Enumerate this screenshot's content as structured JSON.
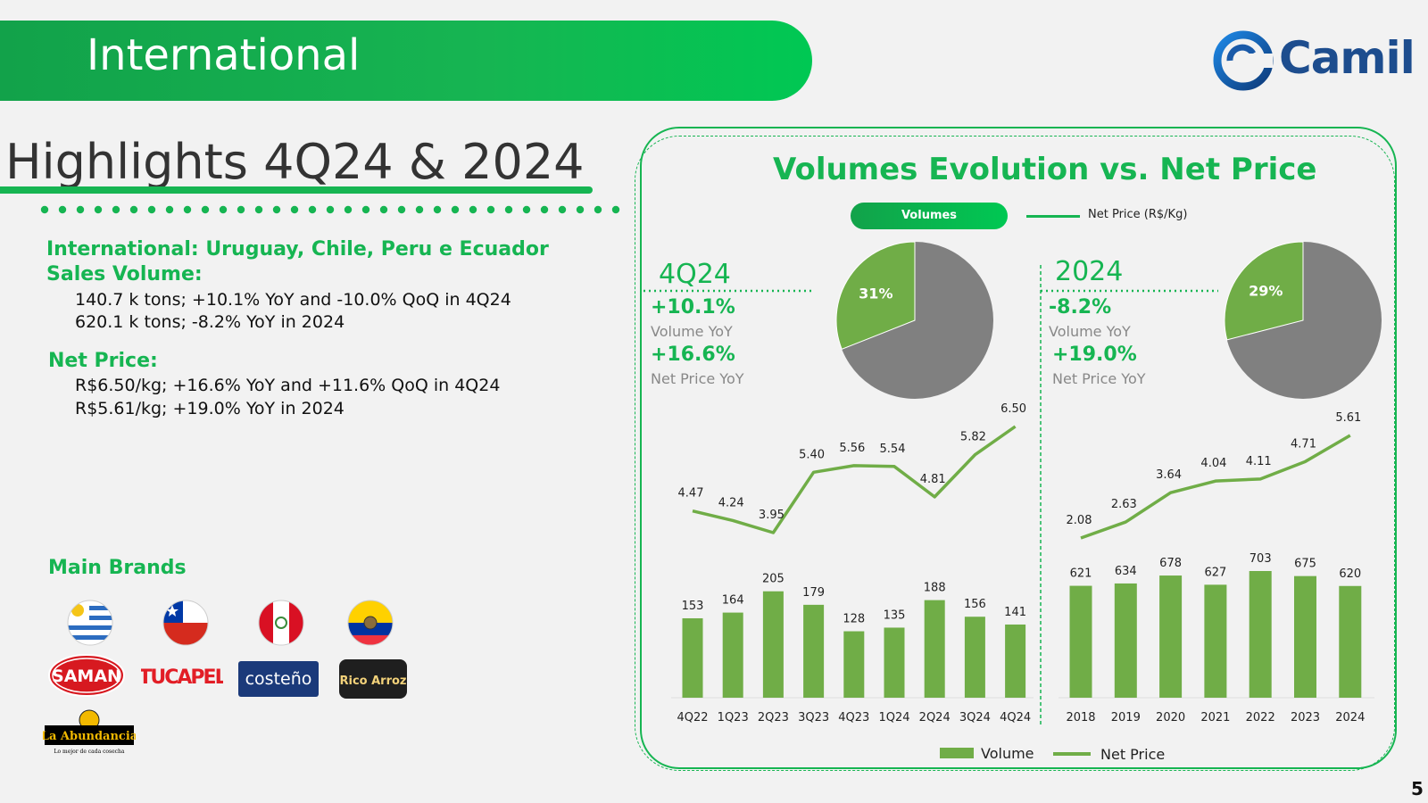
{
  "header": {
    "title": "International"
  },
  "logo": {
    "text": "Camil",
    "color": "#1d4d8e"
  },
  "highlights": {
    "title": "Highlights 4Q24 & 2024",
    "sales_heading_1": "International: Uruguay, Chile, Peru e Ecuador",
    "sales_heading_2": "Sales Volume:",
    "sales_lines": [
      "140.7 k tons; +10.1% YoY and -10.0% QoQ in 4Q24",
      "620.1 k tons; -8.2% YoY in 2024"
    ],
    "price_heading": "Net Price:",
    "price_lines": [
      "R$6.50/kg; +16.6% YoY and +11.6% QoQ in 4Q24",
      "R$5.61/kg; +19.0% YoY in 2024"
    ],
    "brands_heading": "Main Brands",
    "brands": [
      "SAMAN",
      "TUCAPEL",
      "costeño",
      "Rico Arroz",
      "La Abundancia"
    ],
    "brand_tagline": "Lo mejor de cada cosecha",
    "flags": [
      "uruguay-flag",
      "chile-flag",
      "peru-flag",
      "ecuador-flag"
    ]
  },
  "panel": {
    "title": "Volumes Evolution vs. Net Price",
    "legend_top": {
      "volumes": "Volumes",
      "net_price": "Net Price (R$/Kg)"
    },
    "legend_bottom": {
      "volume": "Volume",
      "net_price": "Net Price"
    },
    "left": {
      "period": "4Q24",
      "kpi_volume": "+10.1%",
      "kpi_volume_label": "Volume YoY",
      "kpi_price": "+16.6%",
      "kpi_price_label": "Net Price YoY",
      "pie_label": "31%"
    },
    "right": {
      "period": "2024",
      "kpi_volume": "-8.2%",
      "kpi_volume_label": "Volume YoY",
      "kpi_price": "+19.0%",
      "kpi_price_label": "Net Price YoY",
      "pie_label": "29%"
    }
  },
  "colors": {
    "accent": "#16b552",
    "bar": "#70ad47",
    "pie_other": "#808080"
  },
  "page_number": "5",
  "chart_data": [
    {
      "type": "bar",
      "id": "quarterly",
      "categories": [
        "4Q22",
        "1Q23",
        "2Q23",
        "3Q23",
        "4Q23",
        "1Q24",
        "2Q24",
        "3Q24",
        "4Q24"
      ],
      "series": [
        {
          "name": "Volume",
          "type": "bar",
          "values": [
            153,
            164,
            205,
            179,
            128,
            135,
            188,
            156,
            141
          ]
        },
        {
          "name": "Net Price",
          "type": "line",
          "values": [
            4.47,
            4.24,
            3.95,
            5.4,
            5.56,
            5.54,
            4.81,
            5.82,
            6.5
          ]
        }
      ],
      "legend": "bottom"
    },
    {
      "type": "bar",
      "id": "annual",
      "categories": [
        "2018",
        "2019",
        "2020",
        "2021",
        "2022",
        "2023",
        "2024"
      ],
      "series": [
        {
          "name": "Volume",
          "type": "bar",
          "values": [
            621,
            634,
            678,
            627,
            703,
            675,
            620
          ]
        },
        {
          "name": "Net Price",
          "type": "line",
          "values": [
            2.08,
            2.63,
            3.64,
            4.04,
            4.11,
            4.71,
            5.61
          ]
        }
      ],
      "legend": "bottom"
    },
    {
      "type": "pie",
      "id": "pie-4q24",
      "values": [
        31,
        69
      ],
      "labels": [
        "31%",
        ""
      ]
    },
    {
      "type": "pie",
      "id": "pie-2024",
      "values": [
        29,
        71
      ],
      "labels": [
        "29%",
        ""
      ]
    }
  ]
}
